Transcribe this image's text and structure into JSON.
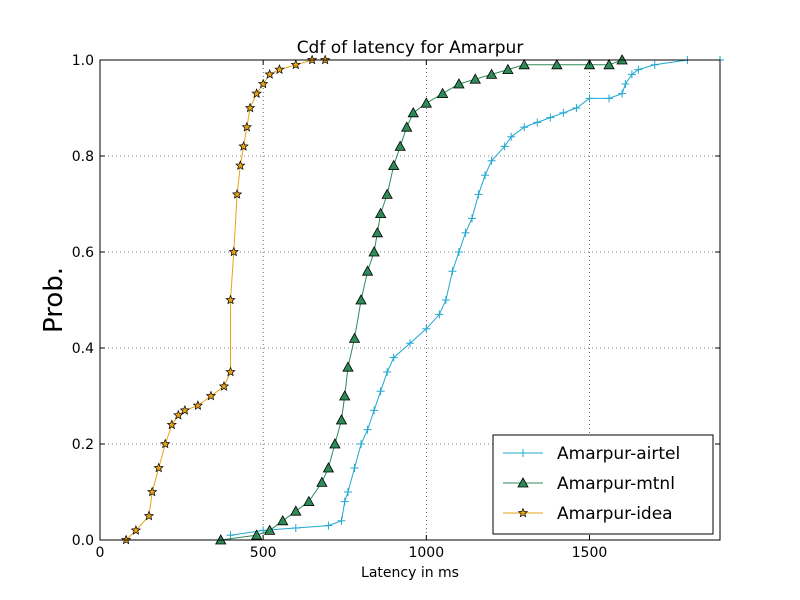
{
  "chart_data": {
    "type": "line",
    "title": "Cdf of latency for Amarpur",
    "xlabel": "Latency in ms",
    "ylabel": "Prob.",
    "xlim": [
      0,
      1900
    ],
    "ylim": [
      0,
      1.0
    ],
    "xticks": [
      0,
      500,
      1000,
      1500
    ],
    "xtick_labels": [
      "0",
      "500",
      "1000",
      "1500"
    ],
    "yticks": [
      0,
      0.2,
      0.4,
      0.6,
      0.8,
      1.0
    ],
    "ytick_labels": [
      "0.0",
      "0.2",
      "0.4",
      "0.6",
      "0.8",
      "1.0"
    ],
    "grid": true,
    "legend_position": "lower-right",
    "series": [
      {
        "name": "Amarpur-airtel",
        "color": "#1fa7cf",
        "marker": "plus",
        "x": [
          400,
          500,
          600,
          700,
          740,
          750,
          760,
          780,
          800,
          820,
          840,
          860,
          880,
          900,
          950,
          1000,
          1040,
          1060,
          1080,
          1100,
          1120,
          1140,
          1160,
          1180,
          1200,
          1240,
          1260,
          1300,
          1340,
          1380,
          1420,
          1460,
          1500,
          1560,
          1600,
          1610,
          1630,
          1650,
          1700,
          1800,
          1900
        ],
        "y": [
          0.01,
          0.02,
          0.025,
          0.03,
          0.04,
          0.08,
          0.1,
          0.15,
          0.2,
          0.23,
          0.27,
          0.31,
          0.35,
          0.38,
          0.41,
          0.44,
          0.47,
          0.5,
          0.56,
          0.6,
          0.64,
          0.67,
          0.72,
          0.76,
          0.79,
          0.82,
          0.84,
          0.86,
          0.87,
          0.88,
          0.89,
          0.9,
          0.92,
          0.92,
          0.93,
          0.95,
          0.97,
          0.98,
          0.99,
          1.0,
          1.0
        ]
      },
      {
        "name": "Amarpur-mtnl",
        "color": "#2e8b57",
        "marker": "triangle",
        "x": [
          370,
          480,
          520,
          560,
          600,
          640,
          680,
          700,
          720,
          740,
          750,
          760,
          780,
          800,
          820,
          840,
          850,
          860,
          880,
          900,
          920,
          940,
          960,
          1000,
          1050,
          1100,
          1150,
          1200,
          1250,
          1300,
          1400,
          1500,
          1560,
          1600
        ],
        "y": [
          0.0,
          0.01,
          0.02,
          0.04,
          0.06,
          0.08,
          0.12,
          0.15,
          0.2,
          0.25,
          0.3,
          0.36,
          0.42,
          0.5,
          0.56,
          0.6,
          0.64,
          0.68,
          0.72,
          0.78,
          0.82,
          0.86,
          0.89,
          0.91,
          0.93,
          0.95,
          0.96,
          0.97,
          0.98,
          0.99,
          0.99,
          0.99,
          0.99,
          1.0
        ]
      },
      {
        "name": "Amarpur-idea",
        "color": "#e8a317",
        "marker": "star",
        "x": [
          80,
          110,
          150,
          160,
          180,
          200,
          220,
          240,
          260,
          300,
          340,
          380,
          400,
          400,
          410,
          420,
          430,
          440,
          450,
          460,
          480,
          500,
          520,
          550,
          600,
          650,
          690
        ],
        "y": [
          0.0,
          0.02,
          0.05,
          0.1,
          0.15,
          0.2,
          0.24,
          0.26,
          0.27,
          0.28,
          0.3,
          0.32,
          0.35,
          0.5,
          0.6,
          0.72,
          0.78,
          0.82,
          0.86,
          0.9,
          0.93,
          0.95,
          0.97,
          0.98,
          0.99,
          1.0,
          1.0
        ]
      }
    ]
  }
}
